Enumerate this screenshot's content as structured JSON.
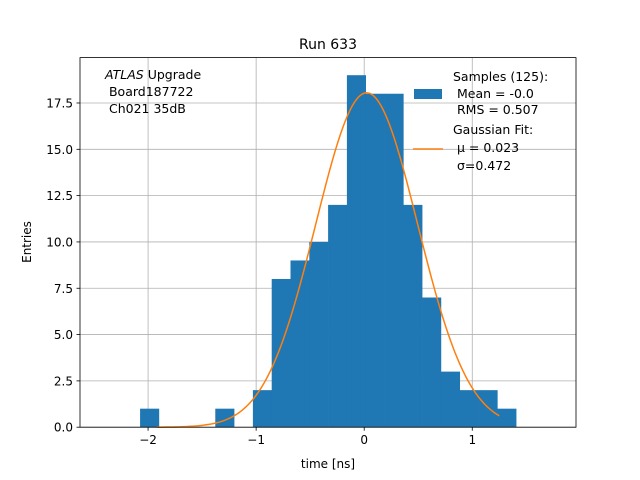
{
  "chart_data": {
    "type": "bar",
    "title": "Run 633",
    "xlabel": "time [ns]",
    "ylabel": "Entries",
    "xlim": [
      -2.63,
      1.96
    ],
    "ylim": [
      0,
      19.95
    ],
    "grid": true,
    "xticks": [
      -2,
      -1,
      0,
      1
    ],
    "xtick_labels": [
      "−2",
      "−1",
      "0",
      "1"
    ],
    "yticks": [
      0,
      2.5,
      5,
      7.5,
      10,
      12.5,
      15,
      17.5
    ],
    "ytick_labels": [
      "0.0",
      "2.5",
      "5.0",
      "7.5",
      "10.0",
      "12.5",
      "15.0",
      "17.5"
    ],
    "histogram": {
      "bin_start": -2.074,
      "bin_width": 0.174,
      "counts": [
        1,
        0,
        0,
        0,
        1,
        0,
        2,
        8,
        9,
        10,
        12,
        19,
        18,
        18,
        12,
        7,
        3,
        2,
        2,
        1
      ],
      "color": "#1f77b4"
    },
    "fit": {
      "name": "Gaussian Fit",
      "mu": 0.023,
      "sigma": 0.472,
      "amplitude": 18.05,
      "x_range": [
        -1.92,
        1.25
      ],
      "color": "#ff7f0e"
    },
    "annotation": {
      "italic": "ATLAS",
      "line1_rest": " Upgrade",
      "line2": " Board187722",
      "line3": " Ch021 35dB"
    },
    "legend": {
      "placement": "top-right",
      "entries": [
        {
          "lines": [
            "Samples (125):",
            " Mean = -0.0",
            " RMS = 0.507"
          ]
        },
        {
          "lines": [
            "Gaussian Fit:",
            " μ = 0.023",
            " σ=0.472"
          ]
        }
      ]
    }
  }
}
